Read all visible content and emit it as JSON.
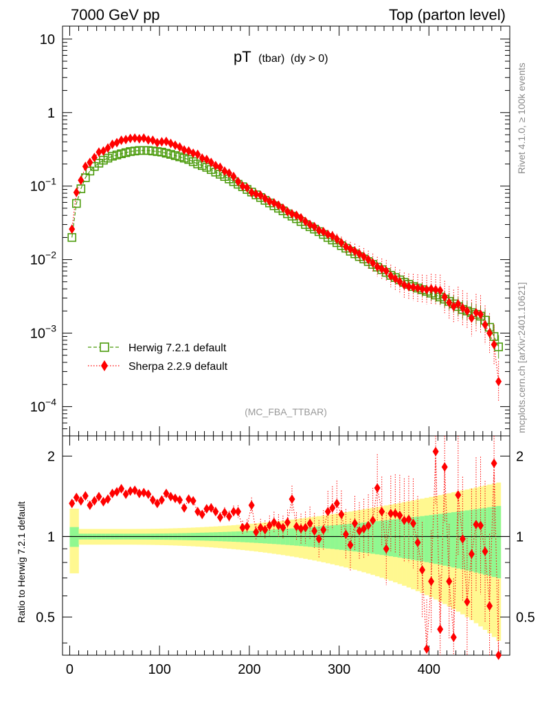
{
  "header": {
    "left": "7000 GeV pp",
    "right": "Top (parton level)"
  },
  "plot_title": {
    "main": "pT",
    "sub": "(tbar)",
    "cut": "(dy > 0)"
  },
  "analysis_label": "(MC_FBA_TTBAR)",
  "side_labels": {
    "rivet": "Rivet 4.1.0, ≥ 100k events",
    "mcplots": "mcplots.cern.ch [arXiv:2401.10621]"
  },
  "ratio_ylabel": "Ratio to Herwig 7.2.1 default",
  "colors": {
    "herwig": "#4a9a0a",
    "sherpa": "#ff0000",
    "band_inner": "#90f890",
    "band_outer": "#fff890"
  },
  "chart_data": [
    {
      "type": "scatter",
      "title": "pT (tbar) (dy > 0)",
      "xlabel": "",
      "ylabel": "",
      "yscale": "log",
      "xlim": [
        -8,
        490
      ],
      "ylim": [
        4e-05,
        15
      ],
      "y_ticks": [
        {
          "value": 10,
          "label": "10"
        },
        {
          "value": 1,
          "label": "1"
        },
        {
          "value": 0.1,
          "label": "10",
          "exp": "−1"
        },
        {
          "value": 0.01,
          "label": "10",
          "exp": "−2"
        },
        {
          "value": 0.001,
          "label": "10",
          "exp": "−3"
        },
        {
          "value": 0.0001,
          "label": "10",
          "exp": "−4"
        }
      ],
      "legend": [
        {
          "name": "Herwig 7.2.1 default",
          "marker": "open-square",
          "line": "dashed"
        },
        {
          "name": "Sherpa 2.2.9 default",
          "marker": "filled-diamond",
          "line": "dotted"
        }
      ],
      "legend_position": "lower-left",
      "x": [
        2.5,
        7.5,
        12.5,
        17.5,
        22.5,
        27.5,
        32.5,
        37.5,
        42.5,
        47.5,
        52.5,
        57.5,
        62.5,
        67.5,
        72.5,
        77.5,
        82.5,
        87.5,
        92.5,
        97.5,
        102.5,
        107.5,
        112.5,
        117.5,
        122.5,
        127.5,
        132.5,
        137.5,
        142.5,
        147.5,
        152.5,
        157.5,
        162.5,
        167.5,
        172.5,
        177.5,
        182.5,
        187.5,
        192.5,
        197.5,
        202.5,
        207.5,
        212.5,
        217.5,
        222.5,
        227.5,
        232.5,
        237.5,
        242.5,
        247.5,
        252.5,
        257.5,
        262.5,
        267.5,
        272.5,
        277.5,
        282.5,
        287.5,
        292.5,
        297.5,
        302.5,
        307.5,
        312.5,
        317.5,
        322.5,
        327.5,
        332.5,
        337.5,
        342.5,
        347.5,
        352.5,
        357.5,
        362.5,
        367.5,
        372.5,
        377.5,
        382.5,
        387.5,
        392.5,
        397.5,
        402.5,
        407.5,
        412.5,
        417.5,
        422.5,
        427.5,
        432.5,
        437.5,
        442.5,
        447.5,
        452.5,
        457.5,
        462.5,
        467.5,
        472.5,
        477.5
      ],
      "series": [
        {
          "name": "Herwig 7.2.1 default",
          "values": [
            0.02,
            0.058,
            0.092,
            0.13,
            0.16,
            0.185,
            0.205,
            0.225,
            0.24,
            0.255,
            0.265,
            0.275,
            0.285,
            0.295,
            0.3,
            0.305,
            0.305,
            0.305,
            0.3,
            0.295,
            0.29,
            0.28,
            0.27,
            0.26,
            0.25,
            0.24,
            0.23,
            0.215,
            0.2,
            0.19,
            0.18,
            0.168,
            0.155,
            0.145,
            0.135,
            0.125,
            0.115,
            0.106,
            0.098,
            0.09,
            0.083,
            0.076,
            0.07,
            0.064,
            0.059,
            0.054,
            0.05,
            0.046,
            0.042,
            0.039,
            0.036,
            0.033,
            0.03,
            0.028,
            0.026,
            0.024,
            0.022,
            0.02,
            0.0185,
            0.017,
            0.0155,
            0.0143,
            0.013,
            0.012,
            0.011,
            0.0102,
            0.0094,
            0.0086,
            0.0079,
            0.0073,
            0.0067,
            0.0061,
            0.0057,
            0.0053,
            0.0049,
            0.0046,
            0.0043,
            0.0041,
            0.0039,
            0.0037,
            0.0035,
            0.0033,
            0.0031,
            0.0029,
            0.0027,
            0.0025,
            0.0023,
            0.0021,
            0.002,
            0.0019,
            0.0018,
            0.0017,
            0.0015,
            0.0012,
            0.0009,
            0.00065
          ]
        },
        {
          "name": "Sherpa 2.2.9 default",
          "values": [
            0.026,
            0.082,
            0.12,
            0.185,
            0.21,
            0.245,
            0.29,
            0.3,
            0.33,
            0.37,
            0.39,
            0.42,
            0.43,
            0.445,
            0.45,
            0.44,
            0.45,
            0.425,
            0.42,
            0.39,
            0.4,
            0.405,
            0.38,
            0.36,
            0.34,
            0.31,
            0.3,
            0.28,
            0.27,
            0.24,
            0.23,
            0.21,
            0.19,
            0.18,
            0.16,
            0.15,
            0.135,
            0.115,
            0.1,
            0.095,
            0.082,
            0.078,
            0.075,
            0.068,
            0.062,
            0.059,
            0.055,
            0.05,
            0.045,
            0.042,
            0.04,
            0.037,
            0.033,
            0.03,
            0.028,
            0.025,
            0.024,
            0.022,
            0.021,
            0.019,
            0.017,
            0.015,
            0.014,
            0.013,
            0.012,
            0.011,
            0.01,
            0.009,
            0.008,
            0.0075,
            0.007,
            0.006,
            0.0055,
            0.005,
            0.0045,
            0.0043,
            0.0042,
            0.0041,
            0.004,
            0.0039,
            0.004,
            0.0039,
            0.0038,
            0.0031,
            0.0026,
            0.0023,
            0.0025,
            0.0022,
            0.002,
            0.0016,
            0.0019,
            0.0018,
            0.0013,
            0.001,
            0.0007,
            0.00022
          ]
        }
      ]
    },
    {
      "type": "scatter",
      "title": "",
      "xlabel": "",
      "ylabel": "Ratio to Herwig 7.2.1 default",
      "xlim": [
        -8,
        490
      ],
      "ylim": [
        0.36,
        2.38
      ],
      "x_ticks": [
        0,
        100,
        200,
        300,
        400
      ],
      "y_ticks": [
        0.5,
        1,
        2
      ],
      "reference_line": 1,
      "x": [
        2.5,
        7.5,
        12.5,
        17.5,
        22.5,
        27.5,
        32.5,
        37.5,
        42.5,
        47.5,
        52.5,
        57.5,
        62.5,
        67.5,
        72.5,
        77.5,
        82.5,
        87.5,
        92.5,
        97.5,
        102.5,
        107.5,
        112.5,
        117.5,
        122.5,
        127.5,
        132.5,
        137.5,
        142.5,
        147.5,
        152.5,
        157.5,
        162.5,
        167.5,
        172.5,
        177.5,
        182.5,
        187.5,
        192.5,
        197.5,
        202.5,
        207.5,
        212.5,
        217.5,
        222.5,
        227.5,
        232.5,
        237.5,
        242.5,
        247.5,
        252.5,
        257.5,
        262.5,
        267.5,
        272.5,
        277.5,
        282.5,
        287.5,
        292.5,
        297.5,
        302.5,
        307.5,
        312.5,
        317.5,
        322.5,
        327.5,
        332.5,
        337.5,
        342.5,
        347.5,
        352.5,
        357.5,
        362.5,
        367.5,
        372.5,
        377.5,
        382.5,
        387.5,
        392.5,
        397.5,
        402.5,
        407.5,
        412.5,
        417.5,
        422.5,
        427.5,
        432.5,
        437.5,
        442.5,
        447.5,
        452.5,
        457.5,
        462.5,
        467.5,
        472.5,
        477.5
      ],
      "series": [
        {
          "name": "Sherpa 2.2.9 default",
          "values": [
            1.33,
            1.4,
            1.36,
            1.42,
            1.31,
            1.36,
            1.41,
            1.35,
            1.38,
            1.45,
            1.47,
            1.51,
            1.44,
            1.48,
            1.49,
            1.45,
            1.46,
            1.44,
            1.37,
            1.33,
            1.37,
            1.45,
            1.41,
            1.39,
            1.37,
            1.28,
            1.38,
            1.36,
            1.24,
            1.21,
            1.27,
            1.28,
            1.24,
            1.18,
            1.23,
            1.19,
            1.24,
            1.24,
            1.08,
            1.09,
            1.31,
            1.04,
            1.08,
            1.06,
            1.1,
            1.13,
            1.1,
            1.08,
            1.13,
            1.38,
            1.09,
            1.07,
            1.08,
            1.12,
            1.05,
            0.98,
            1.06,
            1.24,
            1.28,
            1.33,
            1.21,
            1.02,
            0.93,
            1.12,
            1.05,
            1.07,
            1.1,
            1.15,
            1.52,
            1.24,
            0.9,
            1.22,
            1.22,
            1.2,
            1.15,
            1.16,
            1.12,
            0.95,
            0.75,
            0.38,
            0.68,
            2.08,
            0.45,
            1.82,
            0.68,
            0.42,
            1.43,
            0.98,
            0.57,
            0.86,
            1.11,
            1.1,
            0.88,
            0.55,
            1.88,
            0.36
          ]
        }
      ]
    }
  ]
}
